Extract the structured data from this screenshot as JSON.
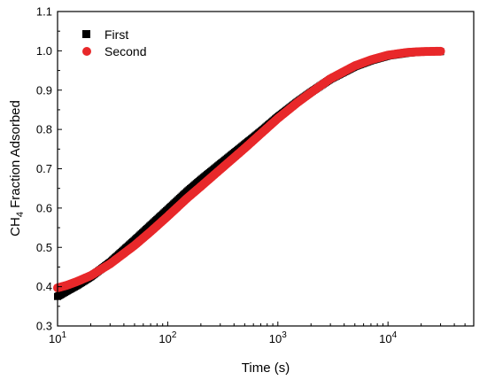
{
  "chart_data": {
    "type": "scatter",
    "xlabel": "Time (s)",
    "ylabel_main": "CH",
    "ylabel_sub": "4",
    "ylabel_rest": " Fraction Adsorbed",
    "x_scale": "log",
    "xlim": [
      10,
      60000
    ],
    "ylim": [
      0.3,
      1.1
    ],
    "x_ticks": [
      {
        "value": 10,
        "base": "10",
        "exp": "1"
      },
      {
        "value": 100,
        "base": "10",
        "exp": "2"
      },
      {
        "value": 1000,
        "base": "10",
        "exp": "3"
      },
      {
        "value": 10000,
        "base": "10",
        "exp": "4"
      }
    ],
    "y_ticks": [
      "0.3",
      "0.4",
      "0.5",
      "0.6",
      "0.7",
      "0.8",
      "0.9",
      "1.0",
      "1.1"
    ],
    "grid": false,
    "legend_position": "top-left",
    "series": [
      {
        "name": "First",
        "marker": "square",
        "color": "#000000",
        "x": [
          10,
          12,
          15,
          20,
          30,
          50,
          70,
          100,
          150,
          200,
          300,
          500,
          700,
          1000,
          1500,
          2000,
          3000,
          5000,
          7000,
          10000,
          15000,
          20000,
          30000
        ],
        "y": [
          0.375,
          0.388,
          0.403,
          0.425,
          0.462,
          0.518,
          0.556,
          0.596,
          0.642,
          0.672,
          0.712,
          0.762,
          0.795,
          0.832,
          0.87,
          0.895,
          0.928,
          0.96,
          0.975,
          0.987,
          0.994,
          0.997,
          0.998
        ]
      },
      {
        "name": "Second",
        "marker": "circle",
        "color": "#e8282a",
        "x": [
          10,
          12,
          15,
          20,
          30,
          50,
          70,
          100,
          150,
          200,
          300,
          500,
          700,
          1000,
          1500,
          2000,
          3000,
          5000,
          7000,
          10000,
          15000,
          20000,
          30000
        ],
        "y": [
          0.397,
          0.403,
          0.413,
          0.428,
          0.458,
          0.505,
          0.54,
          0.579,
          0.625,
          0.655,
          0.698,
          0.752,
          0.789,
          0.828,
          0.868,
          0.894,
          0.929,
          0.962,
          0.977,
          0.989,
          0.996,
          0.998,
          0.999
        ]
      }
    ]
  }
}
